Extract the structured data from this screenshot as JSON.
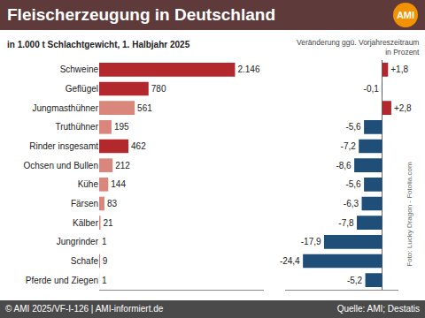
{
  "header": {
    "logo": "AMI"
  },
  "chart_data": [
    {
      "type": "bar",
      "title": "Fleischerzeugung in Deutschland",
      "subtitle": "in 1.000 t Schlachtgewicht, 1. Halbjahr 2025",
      "orientation": "horizontal",
      "categories": [
        "Schweine",
        "Geflügel",
        "Jungmasthühner",
        "Truthühner",
        "Rinder insgesamt",
        "Ochsen und Bullen",
        "Kühe",
        "Färsen",
        "Kälber",
        "Jungrinder",
        "Schafe",
        "Pferde und Ziegen"
      ],
      "values": [
        2146,
        780,
        561,
        195,
        462,
        212,
        144,
        83,
        21,
        1,
        9,
        1
      ],
      "value_labels": [
        "2.146",
        "780",
        "561",
        "195",
        "462",
        "212",
        "144",
        "83",
        "21",
        "1",
        "9",
        "1"
      ],
      "colors": [
        "#b3282d",
        "#b3282d",
        "#d9877d",
        "#d9877d",
        "#b3282d",
        "#d9877d",
        "#d9877d",
        "#d9877d",
        "#d9877d",
        "#d9877d",
        "#b3282d",
        "#b3282d"
      ],
      "xlim": [
        0,
        2600
      ],
      "data_labels": true,
      "tick_labels": "y",
      "grid": false
    },
    {
      "type": "bar",
      "title": "Veränderung ggü. Vorjahreszeitraum in Prozent",
      "orientation": "horizontal",
      "categories": [
        "Schweine",
        "Geflügel",
        "Jungmasthühner",
        "Truthühner",
        "Rinder insgesamt",
        "Ochsen und Bullen",
        "Kühe",
        "Färsen",
        "Kälber",
        "Jungrinder",
        "Schafe",
        "Pferde und Ziegen"
      ],
      "values": [
        1.8,
        -0.1,
        2.8,
        -5.6,
        -7.2,
        -8.6,
        -5.6,
        -6.3,
        -7.8,
        -17.9,
        -24.4,
        -5.2
      ],
      "value_labels": [
        "+1,8",
        "-0,1",
        "+2,8",
        "-5,6",
        "-7,2",
        "-8,6",
        "-5,6",
        "-6,3",
        "-7,8",
        "-17,9",
        "-24,4",
        "-5,2"
      ],
      "colors": [
        "#b3282d",
        "#1f4e79",
        "#b3282d",
        "#1f4e79",
        "#1f4e79",
        "#1f4e79",
        "#1f4e79",
        "#1f4e79",
        "#1f4e79",
        "#1f4e79",
        "#1f4e79",
        "#1f4e79"
      ],
      "xlim": [
        -30,
        5
      ],
      "data_labels": true,
      "tick_labels": false,
      "grid": false
    }
  ],
  "photo_credit": "Foto: Lucky Dragon - Fotolia.com",
  "footer": {
    "left": "© AMI 2025/VF-I-126 | AMI-informiert.de",
    "right": "Quelle: AMI; Destatis"
  }
}
